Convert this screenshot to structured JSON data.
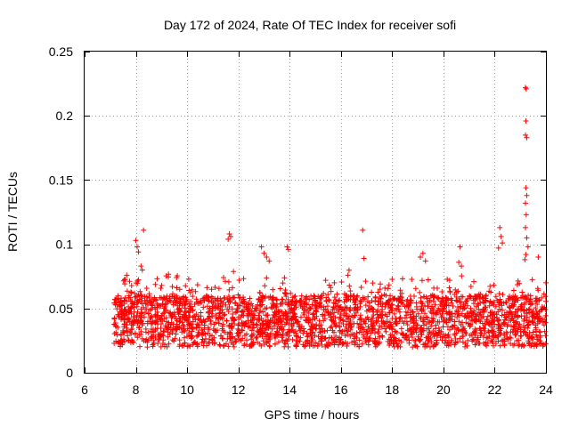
{
  "chart_data": {
    "type": "scatter",
    "title": "Day 172 of 2024, Rate Of TEC Index for receiver sofi",
    "xlabel": "GPS time / hours",
    "ylabel": "ROTI / TECUs",
    "xlim": [
      6,
      24
    ],
    "ylim": [
      0,
      0.25
    ],
    "x_ticks": [
      6,
      8,
      10,
      12,
      14,
      16,
      18,
      20,
      22,
      24
    ],
    "x_tick_labels": [
      "6",
      "8",
      "10",
      "12",
      "14",
      "16",
      "18",
      "20",
      "22",
      "24"
    ],
    "y_ticks": [
      0,
      0.05,
      0.1,
      0.15,
      0.2,
      0.25
    ],
    "y_tick_labels": [
      "0",
      "0.05",
      "0.1",
      "0.15",
      "0.2",
      "0.25"
    ],
    "grid": true,
    "marker": "+",
    "color": "#ff0000",
    "band": {
      "x_start": 7.15,
      "x_end": 24.0,
      "low": 0.02,
      "high": 0.06,
      "typical_peak": 0.08
    },
    "series": [
      {
        "name": "ROTI",
        "points": [
          [
            8.0,
            0.103
          ],
          [
            8.05,
            0.098
          ],
          [
            8.1,
            0.094
          ],
          [
            8.3,
            0.111
          ],
          [
            8.2,
            0.083
          ],
          [
            8.25,
            0.08
          ],
          [
            11.65,
            0.108
          ],
          [
            11.7,
            0.106
          ],
          [
            11.6,
            0.104
          ],
          [
            12.9,
            0.098
          ],
          [
            13.0,
            0.093
          ],
          [
            13.1,
            0.09
          ],
          [
            13.2,
            0.087
          ],
          [
            13.9,
            0.098
          ],
          [
            13.95,
            0.096
          ],
          [
            16.85,
            0.111
          ],
          [
            16.9,
            0.089
          ],
          [
            19.2,
            0.093
          ],
          [
            19.1,
            0.09
          ],
          [
            19.3,
            0.087
          ],
          [
            20.65,
            0.098
          ],
          [
            20.6,
            0.086
          ],
          [
            20.7,
            0.083
          ],
          [
            22.2,
            0.113
          ],
          [
            22.25,
            0.106
          ],
          [
            22.3,
            0.101
          ],
          [
            22.15,
            0.097
          ],
          [
            23.2,
            0.222
          ],
          [
            23.23,
            0.221
          ],
          [
            23.22,
            0.196
          ],
          [
            23.2,
            0.185
          ],
          [
            23.25,
            0.183
          ],
          [
            23.22,
            0.144
          ],
          [
            23.25,
            0.138
          ],
          [
            23.2,
            0.132
          ],
          [
            23.23,
            0.123
          ],
          [
            23.2,
            0.113
          ],
          [
            23.25,
            0.105
          ],
          [
            23.3,
            0.098
          ],
          [
            23.22,
            0.092
          ],
          [
            23.18,
            0.088
          ],
          [
            23.7,
            0.09
          ],
          [
            24.0,
            0.07
          ]
        ]
      }
    ]
  }
}
